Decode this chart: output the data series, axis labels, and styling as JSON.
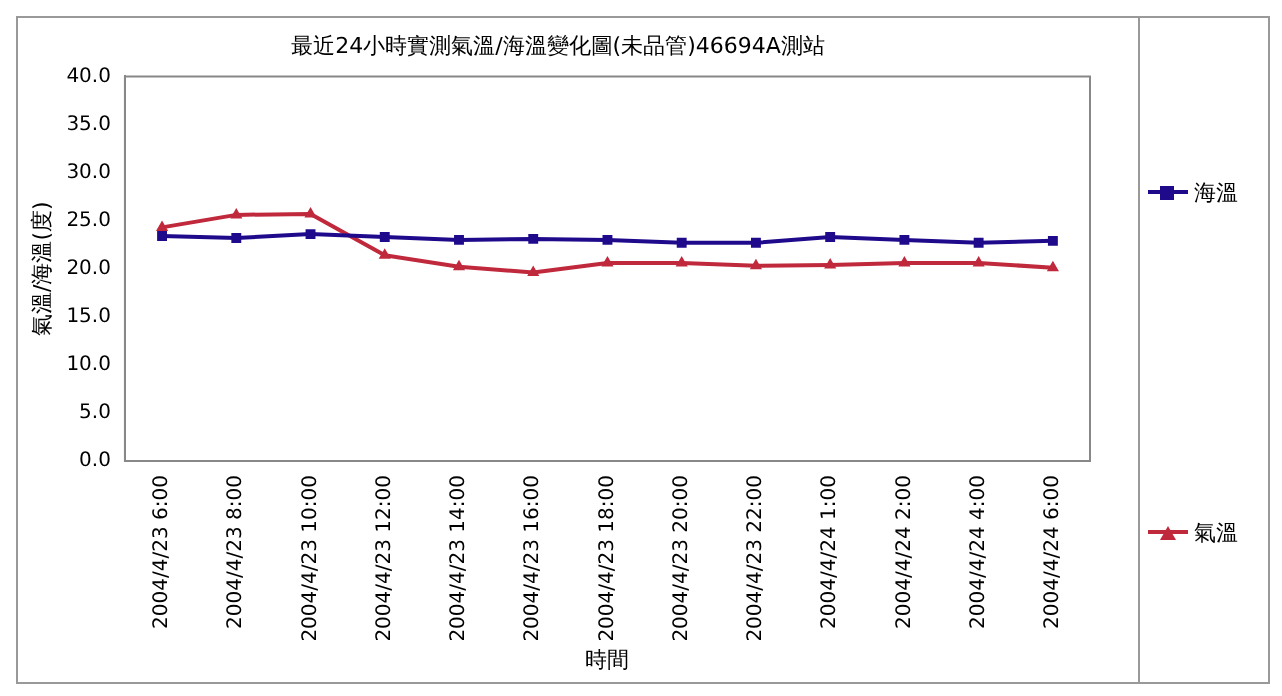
{
  "chart_data": {
    "type": "line",
    "title": "最近24小時實測氣溫/海溫變化圖(未品管)46694A測站",
    "xlabel": "時間",
    "ylabel": "氣溫/海溫(度)",
    "categories": [
      "2004/4/23 6:00",
      "2004/4/23 8:00",
      "2004/4/23 10:00",
      "2004/4/23 12:00",
      "2004/4/23 14:00",
      "2004/4/23 16:00",
      "2004/4/23 18:00",
      "2004/4/23 20:00",
      "2004/4/23 22:00",
      "2004/4/24 1:00",
      "2004/4/24 2:00",
      "2004/4/24 4:00",
      "2004/4/24 6:00"
    ],
    "series": [
      {
        "name": "海溫",
        "color": "#1f0a8c",
        "marker": "square",
        "values": [
          23.4,
          23.2,
          23.6,
          23.3,
          23.0,
          23.1,
          23.0,
          22.7,
          22.7,
          23.3,
          23.0,
          22.7,
          22.9
        ]
      },
      {
        "name": "氣溫",
        "color": "#c0283c",
        "marker": "triangle",
        "values": [
          24.3,
          25.6,
          25.7,
          21.4,
          20.2,
          19.6,
          20.6,
          20.6,
          20.3,
          20.4,
          20.6,
          20.6,
          20.1
        ]
      }
    ],
    "ylim": [
      0,
      40
    ],
    "yticks": [
      {
        "value": 0,
        "label": "0.0"
      },
      {
        "value": 5,
        "label": "5.0"
      },
      {
        "value": 10,
        "label": "10.0"
      },
      {
        "value": 15,
        "label": "15.0"
      },
      {
        "value": 20,
        "label": "20.0"
      },
      {
        "value": 25,
        "label": "25.0"
      },
      {
        "value": 30,
        "label": "30.0"
      },
      {
        "value": 35,
        "label": "35.0"
      },
      {
        "value": 40,
        "label": "40.0"
      }
    ],
    "grid": false,
    "legend": "right",
    "line_style": "solid"
  }
}
